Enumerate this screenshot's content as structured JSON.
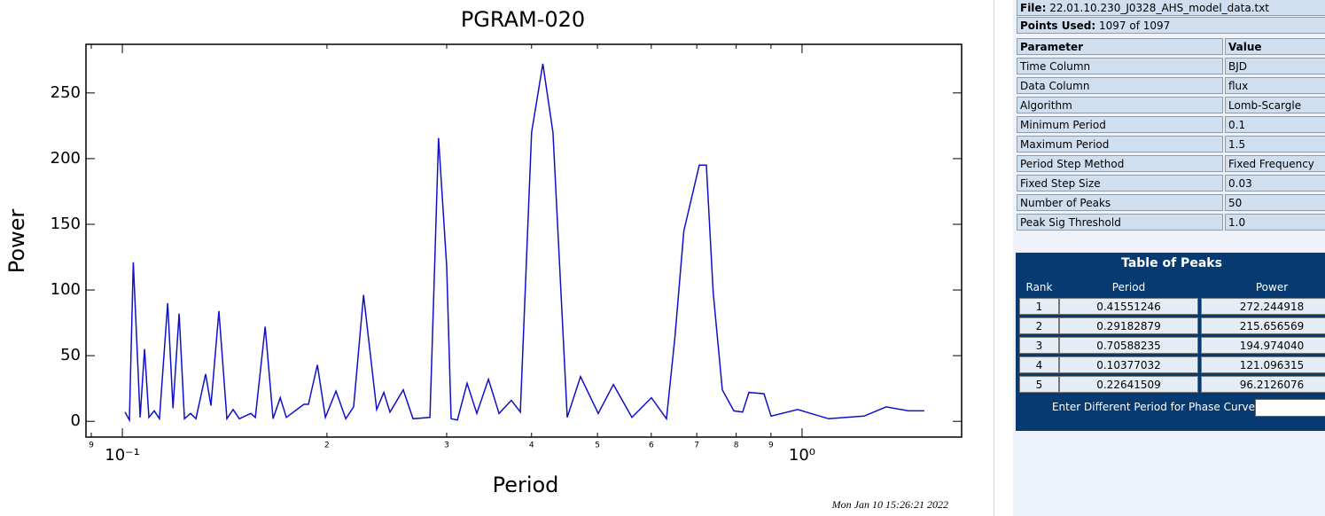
{
  "chart_data": {
    "type": "line",
    "title": "PGRAM-020",
    "x_label": "Period",
    "y_label": "Power",
    "timestamp": "Mon Jan 10 15:26:21 2022",
    "log_x": true,
    "xlim": [
      0.0884,
      1.717
    ],
    "ylim": [
      -12,
      287
    ],
    "xticks": [
      {
        "value": 0.09,
        "label": "9"
      },
      {
        "value": 0.1,
        "label": "10⁻¹"
      },
      {
        "value": 0.2,
        "label": "2"
      },
      {
        "value": 0.3,
        "label": "3"
      },
      {
        "value": 0.4,
        "label": "4"
      },
      {
        "value": 0.5,
        "label": "5"
      },
      {
        "value": 0.6,
        "label": "6"
      },
      {
        "value": 0.7,
        "label": "7"
      },
      {
        "value": 0.8,
        "label": "8"
      },
      {
        "value": 0.9,
        "label": "9"
      },
      {
        "value": 1,
        "label": "10⁰"
      }
    ],
    "yticks": [
      0,
      50,
      100,
      150,
      200,
      250
    ],
    "series": [
      {
        "name": "Power",
        "color": "#1010c8",
        "x": [
          0.1009,
          0.1024,
          0.10377032,
          0.1062,
          0.1078,
          0.1094,
          0.1114,
          0.1134,
          0.1166,
          0.1187,
          0.1212,
          0.1234,
          0.126,
          0.1283,
          0.1326,
          0.135,
          0.1387,
          0.1425,
          0.1455,
          0.1486,
          0.1545,
          0.1569,
          0.1622,
          0.1666,
          0.1707,
          0.1743,
          0.1817,
          0.185,
          0.1878,
          0.1936,
          0.1989,
          0.2062,
          0.2131,
          0.2189,
          0.22641509,
          0.2367,
          0.2425,
          0.2476,
          0.259,
          0.2677,
          0.2835,
          0.288,
          0.29182879,
          0.3,
          0.3046,
          0.3111,
          0.3215,
          0.3323,
          0.3456,
          0.3583,
          0.3736,
          0.385,
          0.4,
          0.41551246,
          0.43,
          0.4513,
          0.4721,
          0.5013,
          0.5277,
          0.562,
          0.6003,
          0.6317,
          0.65,
          0.67,
          0.70588235,
          0.7231,
          0.74,
          0.7634,
          0.7936,
          0.8177,
          0.8352,
          0.879,
          0.9004,
          0.9851,
          1.094,
          1.234,
          1.33,
          1.434,
          1.513
        ],
        "values": [
          7,
          1,
          121.096315,
          3,
          55,
          3,
          8,
          2,
          90,
          10,
          82,
          2,
          6,
          2,
          36,
          12,
          84,
          2,
          9,
          2,
          6,
          3,
          72,
          2,
          18,
          3,
          10,
          13,
          13,
          43,
          3,
          23,
          2,
          11,
          96.2126076,
          9,
          22,
          7,
          24,
          2,
          3,
          118,
          215.656569,
          118,
          2,
          1,
          29,
          6,
          32,
          6,
          16,
          7,
          220,
          272.244918,
          220,
          3,
          34,
          6,
          28,
          3,
          18,
          2,
          64,
          145,
          194.97404,
          195,
          98,
          24,
          8,
          7,
          22,
          21,
          4,
          9,
          2,
          4,
          11,
          8,
          8
        ]
      }
    ]
  },
  "panel": {
    "file": {
      "label": "File:",
      "value": "22.01.10.230_J0328_AHS_model_data.txt"
    },
    "points": {
      "label": "Points Used:",
      "value": "1097 of 1097"
    },
    "params": {
      "header": [
        "Parameter",
        "Value"
      ],
      "rows": [
        [
          "Time Column",
          "BJD"
        ],
        [
          "Data Column",
          "flux"
        ],
        [
          "Algorithm",
          "Lomb-Scargle"
        ],
        [
          "Minimum Period",
          "0.1"
        ],
        [
          "Maximum Period",
          "1.5"
        ],
        [
          "Period Step Method",
          "Fixed Frequency"
        ],
        [
          "Fixed Step Size",
          "0.03"
        ],
        [
          "Number of Peaks",
          "50"
        ],
        [
          "Peak Sig Threshold",
          "1.0"
        ]
      ]
    },
    "peaks": {
      "title": "Table of Peaks",
      "header": [
        "Rank",
        "Period",
        "Power"
      ],
      "rows": [
        [
          "1",
          "0.41551246",
          "272.244918"
        ],
        [
          "2",
          "0.29182879",
          "215.656569"
        ],
        [
          "3",
          "0.70588235",
          "194.974040"
        ],
        [
          "4",
          "0.10377032",
          "121.096315"
        ],
        [
          "5",
          "0.22641509",
          "96.2126076"
        ]
      ]
    },
    "prompt": "Enter Different Period for Phase Curve"
  }
}
